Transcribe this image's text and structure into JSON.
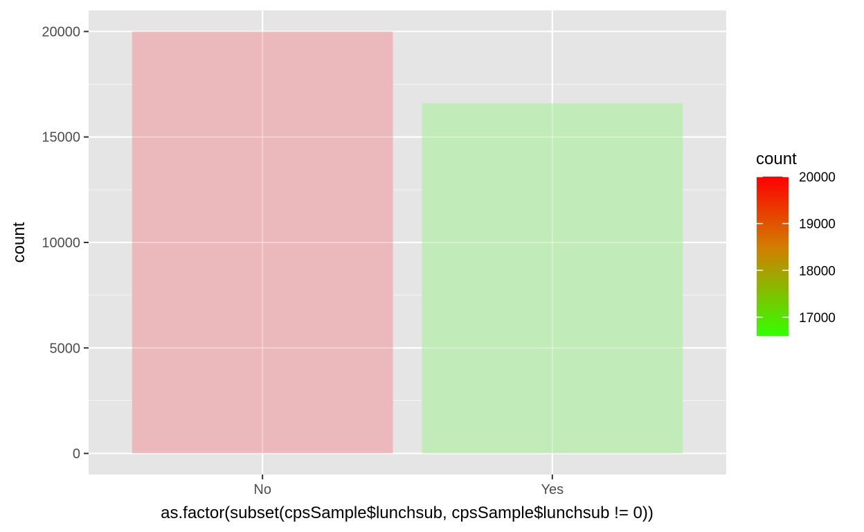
{
  "chart_data": {
    "type": "bar",
    "title": "",
    "xlabel": "as.factor(subset(cpsSample$lunchsub, cpsSample$lunchsub != 0))",
    "ylabel": "count",
    "categories": [
      "No",
      "Yes"
    ],
    "values": [
      20000,
      16600
    ],
    "ylim": [
      -1000,
      21000
    ],
    "yticks": [
      0,
      5000,
      10000,
      15000,
      20000
    ],
    "grid": true,
    "background": "#e5e5e5",
    "bar_colors": [
      "#ebb8bb",
      "#c1ebb8"
    ],
    "legend": {
      "title": "count",
      "position": "right",
      "type": "colorbar",
      "low_color": "#33ff00",
      "mid_color": "#d08000",
      "high_color": "#ff0000",
      "range": [
        16600,
        20000
      ],
      "ticks": [
        17000,
        18000,
        19000,
        20000
      ]
    }
  }
}
